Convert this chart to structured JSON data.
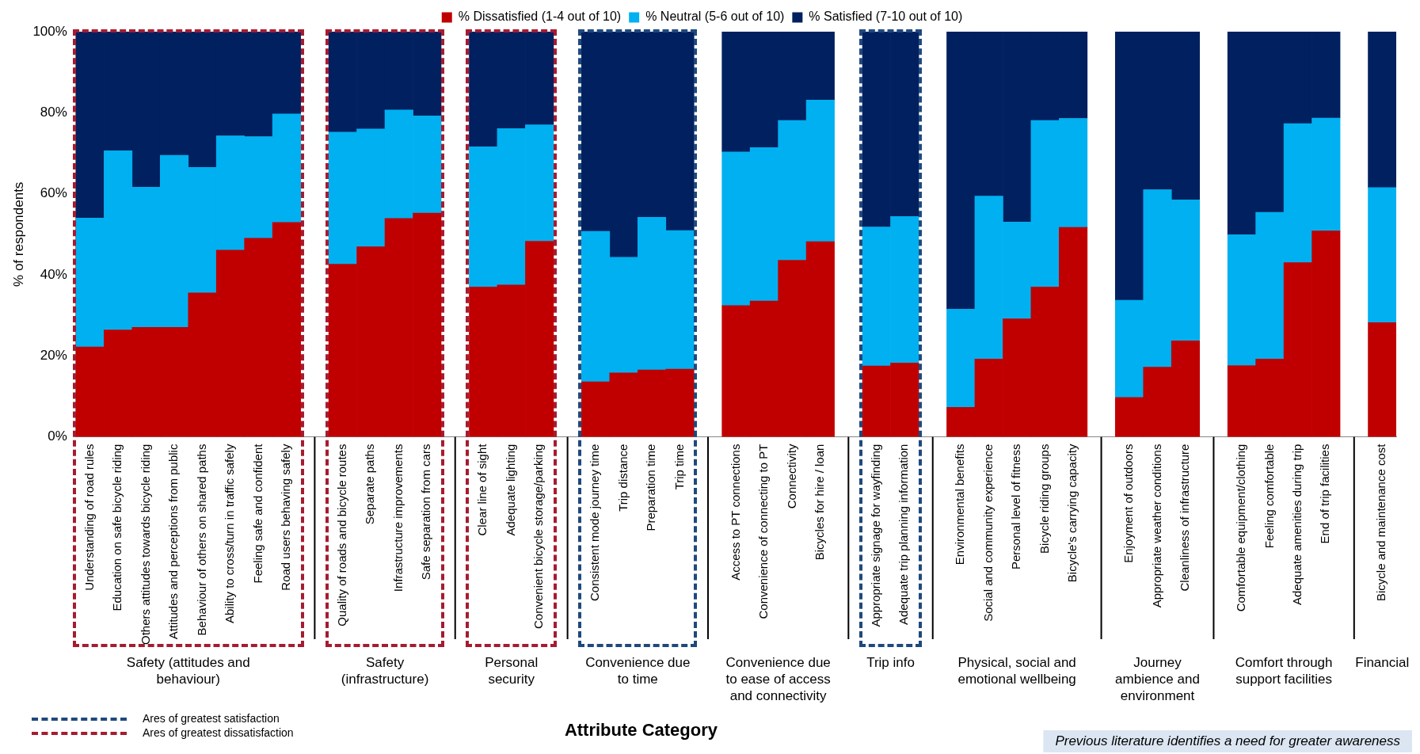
{
  "chart_data": {
    "type": "bar",
    "stacked": true,
    "ylabel": "% of respondents",
    "xlabel": "Attribute Category",
    "legend": "top",
    "categories": [
      "Understanding of road rules",
      "Education on safe bicycle riding",
      "Others attitudes towards bicycle riding",
      "Attitudes and perceptions from public",
      "Behaviour of others on shared paths",
      "Ability to cross/turn in traffic safely",
      "Feeling safe and confident",
      "Road users behaving safely",
      null,
      "Quality of roads and bicycle routes",
      "Separate paths",
      "Infrastructure improvements",
      "Safe separation from cars",
      null,
      "Clear line of sight",
      "Adequate lighting",
      "Convenient bicycle storage/parking",
      null,
      "Consistent mode journey time",
      "Trip distance",
      "Preparation time",
      "Trip time",
      null,
      "Access to PT connections",
      "Convenience of connecting to PT",
      "Connectivity",
      "Bicycles for hire / loan",
      null,
      "Appropriate signage for wayfinding",
      "Adequate trip planning information",
      null,
      "Environmental benefits",
      "Social and community experience",
      "Personal level of fitness",
      "Bicycle riding groups",
      "Bicycle's carrying capacity",
      null,
      "Enjoyment of outdoors",
      "Appropriate weather conditions",
      "Cleanliness of infrastructure",
      null,
      "Comfortable equipment/clothing",
      "Feeling comfortable",
      "Adequate amenities during trip",
      "End of trip facilities",
      null,
      "Bicycle and maintenance cost"
    ],
    "series": [
      {
        "name": "% Dissatisfied (1-4 out of 10)",
        "color": "#c00000",
        "values": [
          22.2,
          26.4,
          27.0,
          27.0,
          35.5,
          46.1,
          49.0,
          52.9,
          null,
          42.6,
          46.9,
          53.9,
          55.2,
          null,
          37.0,
          37.5,
          48.3,
          null,
          13.6,
          15.8,
          16.5,
          16.7,
          null,
          32.4,
          33.5,
          43.6,
          48.2,
          null,
          17.5,
          18.2,
          null,
          7.3,
          19.2,
          29.1,
          37.0,
          51.7,
          null,
          9.7,
          17.2,
          23.7,
          null,
          17.6,
          19.2,
          43.0,
          50.8,
          null,
          28.2
        ]
      },
      {
        "name": "% Neutral (5-6 out of 10)",
        "color": "#00b0f0",
        "values": [
          31.8,
          44.2,
          34.6,
          42.5,
          31.0,
          28.2,
          25.1,
          26.8,
          null,
          32.6,
          29.1,
          26.8,
          24.0,
          null,
          34.6,
          38.6,
          28.7,
          null,
          37.1,
          28.5,
          37.7,
          34.2,
          null,
          37.9,
          37.9,
          34.5,
          34.9,
          null,
          34.3,
          36.2,
          null,
          24.2,
          40.2,
          23.9,
          41.1,
          26.9,
          null,
          24.0,
          43.8,
          34.8,
          null,
          32.3,
          36.2,
          34.3,
          27.9,
          null,
          33.3
        ]
      },
      {
        "name": "% Satisfied (7-10 out of 10)",
        "color": "#002060",
        "values": [
          46.0,
          29.4,
          38.4,
          30.5,
          33.5,
          25.7,
          25.9,
          20.3,
          null,
          24.8,
          24.0,
          19.3,
          20.8,
          null,
          28.4,
          23.9,
          23.0,
          null,
          49.3,
          55.7,
          45.8,
          49.1,
          null,
          29.7,
          28.6,
          21.9,
          16.9,
          null,
          48.2,
          45.6,
          null,
          68.5,
          40.6,
          47.0,
          21.9,
          21.4,
          null,
          66.3,
          39.0,
          41.5,
          null,
          50.1,
          44.6,
          22.7,
          21.3,
          null,
          38.5
        ]
      }
    ],
    "ylim": [
      0,
      100
    ],
    "yticks": [
      {
        "value": 0,
        "label": "0%"
      },
      {
        "value": 20,
        "label": "20%"
      },
      {
        "value": 40,
        "label": "40%"
      },
      {
        "value": 60,
        "label": "60%"
      },
      {
        "value": 80,
        "label": "80%"
      },
      {
        "value": 100,
        "label": "100%"
      }
    ],
    "annotations": [
      "Safety (attitudes and behaviour)",
      "Safety (infrastructure)",
      "Personal security",
      "Convenience due to time",
      "Convenience due to ease of access and connectivity",
      "Trip info",
      "Physical, social and emotional wellbeing",
      "Journey ambience and environment",
      "Comfort through support facilities",
      "Financial",
      "Ares of greatest satisfaction",
      "Ares of greatest dissatisfaction",
      "Previous literature identifies a need for greater awareness"
    ]
  }
}
